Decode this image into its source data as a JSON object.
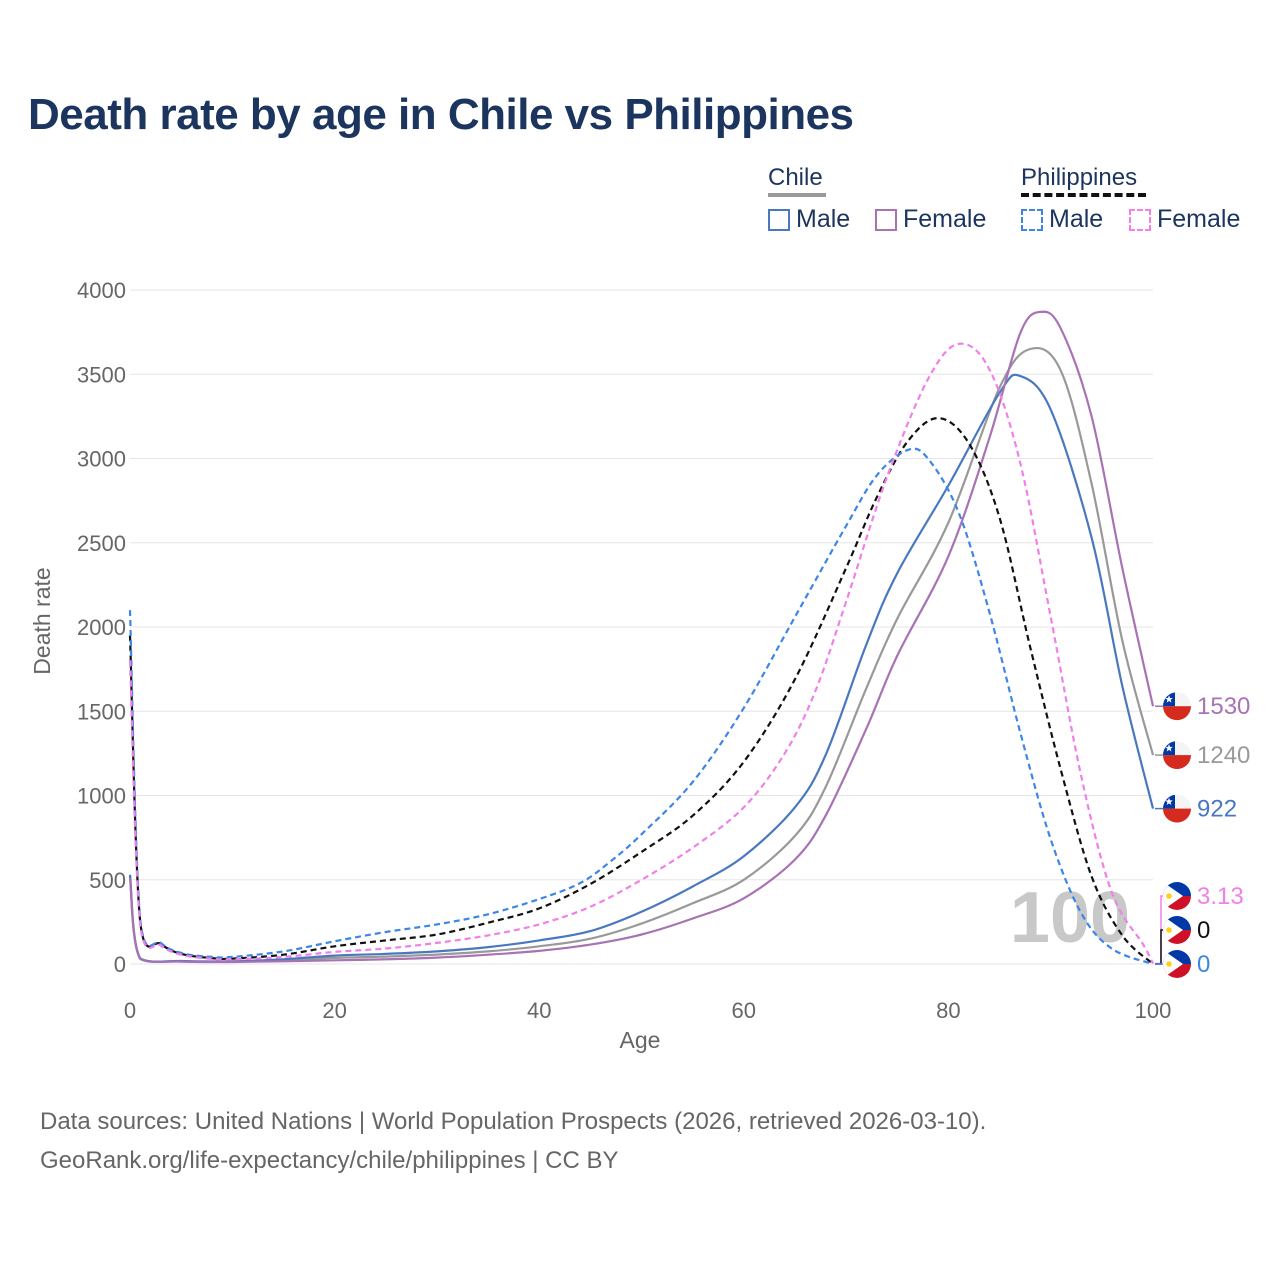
{
  "title": "Death rate by age in Chile vs Philippines",
  "legend": {
    "chile_label": "Chile",
    "philippines_label": "Philippines",
    "male_label": "Male",
    "female_label": "Female"
  },
  "colors": {
    "chile_male": "#4a78c0",
    "chile_female": "#a872b4",
    "chile_total": "#999999",
    "ph_male": "#3d86e8",
    "ph_female": "#f080e8",
    "ph_total": "#111111",
    "title": "#1c355e",
    "grid": "#e5e5e5"
  },
  "chart_data": {
    "type": "line",
    "title": "Death rate by age in Chile vs Philippines",
    "xlabel": "Age",
    "ylabel": "Death rate",
    "xlim": [
      0,
      100
    ],
    "ylim": [
      0,
      4000
    ],
    "x_ticks": [
      0,
      20,
      40,
      60,
      80,
      100
    ],
    "y_ticks": [
      0,
      500,
      1000,
      1500,
      2000,
      2500,
      3000,
      3500,
      4000
    ],
    "watermark": "100",
    "series": [
      {
        "name": "Chile Total",
        "country": "Chile",
        "sex": "Total",
        "color": "#999999",
        "dashed": false,
        "end_label": "1240",
        "end_value": 1240,
        "points": [
          [
            0,
            520
          ],
          [
            1,
            32
          ],
          [
            5,
            16
          ],
          [
            10,
            14
          ],
          [
            15,
            22
          ],
          [
            20,
            36
          ],
          [
            25,
            44
          ],
          [
            30,
            56
          ],
          [
            35,
            75
          ],
          [
            40,
            105
          ],
          [
            45,
            150
          ],
          [
            50,
            240
          ],
          [
            55,
            360
          ],
          [
            60,
            500
          ],
          [
            65,
            760
          ],
          [
            68,
            1050
          ],
          [
            72,
            1640
          ],
          [
            75,
            2050
          ],
          [
            80,
            2620
          ],
          [
            85,
            3420
          ],
          [
            88,
            3650
          ],
          [
            91,
            3520
          ],
          [
            94,
            2850
          ],
          [
            97,
            1920
          ],
          [
            100,
            1240
          ]
        ]
      },
      {
        "name": "Chile Male",
        "country": "Chile",
        "sex": "Male",
        "color": "#4a78c0",
        "dashed": false,
        "end_label": "922",
        "end_value": 922,
        "points": [
          [
            0,
            530
          ],
          [
            1,
            34
          ],
          [
            5,
            18
          ],
          [
            10,
            16
          ],
          [
            15,
            28
          ],
          [
            20,
            50
          ],
          [
            25,
            60
          ],
          [
            30,
            75
          ],
          [
            35,
            100
          ],
          [
            40,
            140
          ],
          [
            45,
            195
          ],
          [
            50,
            310
          ],
          [
            55,
            460
          ],
          [
            60,
            640
          ],
          [
            65,
            930
          ],
          [
            68,
            1240
          ],
          [
            72,
            1900
          ],
          [
            75,
            2320
          ],
          [
            80,
            2840
          ],
          [
            85,
            3390
          ],
          [
            87,
            3490
          ],
          [
            90,
            3290
          ],
          [
            94,
            2530
          ],
          [
            97,
            1650
          ],
          [
            100,
            922
          ]
        ]
      },
      {
        "name": "Chile Female",
        "country": "Chile",
        "sex": "Female",
        "color": "#a872b4",
        "dashed": false,
        "end_label": "1530",
        "end_value": 1530,
        "points": [
          [
            0,
            510
          ],
          [
            1,
            30
          ],
          [
            5,
            14
          ],
          [
            10,
            12
          ],
          [
            15,
            16
          ],
          [
            20,
            22
          ],
          [
            25,
            28
          ],
          [
            30,
            38
          ],
          [
            35,
            55
          ],
          [
            40,
            78
          ],
          [
            45,
            115
          ],
          [
            50,
            175
          ],
          [
            55,
            270
          ],
          [
            60,
            390
          ],
          [
            65,
            620
          ],
          [
            68,
            880
          ],
          [
            72,
            1400
          ],
          [
            75,
            1830
          ],
          [
            80,
            2420
          ],
          [
            84,
            3120
          ],
          [
            87,
            3740
          ],
          [
            89,
            3870
          ],
          [
            91,
            3770
          ],
          [
            94,
            3250
          ],
          [
            97,
            2350
          ],
          [
            100,
            1530
          ]
        ]
      },
      {
        "name": "Philippines Total",
        "country": "Philippines",
        "sex": "Total",
        "color": "#111111",
        "dashed": true,
        "end_label": "0",
        "end_value": 0,
        "points": [
          [
            0,
            1950
          ],
          [
            1,
            250
          ],
          [
            3,
            120
          ],
          [
            5,
            60
          ],
          [
            8,
            35
          ],
          [
            10,
            32
          ],
          [
            15,
            55
          ],
          [
            20,
            105
          ],
          [
            25,
            140
          ],
          [
            30,
            175
          ],
          [
            35,
            245
          ],
          [
            40,
            330
          ],
          [
            45,
            475
          ],
          [
            50,
            665
          ],
          [
            55,
            880
          ],
          [
            60,
            1200
          ],
          [
            65,
            1690
          ],
          [
            70,
            2350
          ],
          [
            73,
            2770
          ],
          [
            76,
            3100
          ],
          [
            79,
            3240
          ],
          [
            82,
            3090
          ],
          [
            85,
            2650
          ],
          [
            88,
            1880
          ],
          [
            91,
            1150
          ],
          [
            94,
            520
          ],
          [
            97,
            170
          ],
          [
            100,
            0
          ]
        ]
      },
      {
        "name": "Philippines Male",
        "country": "Philippines",
        "sex": "Male",
        "color": "#3d86e8",
        "dashed": true,
        "end_label": "0",
        "end_value": 0,
        "points": [
          [
            0,
            2100
          ],
          [
            1,
            265
          ],
          [
            3,
            125
          ],
          [
            5,
            65
          ],
          [
            8,
            42
          ],
          [
            10,
            42
          ],
          [
            15,
            75
          ],
          [
            20,
            135
          ],
          [
            25,
            190
          ],
          [
            30,
            235
          ],
          [
            35,
            295
          ],
          [
            40,
            385
          ],
          [
            44,
            480
          ],
          [
            47,
            610
          ],
          [
            50,
            770
          ],
          [
            55,
            1080
          ],
          [
            60,
            1520
          ],
          [
            65,
            2060
          ],
          [
            70,
            2600
          ],
          [
            73,
            2900
          ],
          [
            76,
            3050
          ],
          [
            78,
            3000
          ],
          [
            81,
            2680
          ],
          [
            84,
            2090
          ],
          [
            87,
            1380
          ],
          [
            90,
            740
          ],
          [
            93,
            300
          ],
          [
            96,
            90
          ],
          [
            100,
            0
          ]
        ]
      },
      {
        "name": "Philippines Female",
        "country": "Philippines",
        "sex": "Female",
        "color": "#f080e8",
        "dashed": true,
        "end_label": "3.13",
        "end_value": 3.13,
        "points": [
          [
            0,
            1800
          ],
          [
            1,
            235
          ],
          [
            3,
            110
          ],
          [
            5,
            55
          ],
          [
            8,
            30
          ],
          [
            10,
            28
          ],
          [
            15,
            42
          ],
          [
            20,
            72
          ],
          [
            25,
            92
          ],
          [
            30,
            125
          ],
          [
            35,
            170
          ],
          [
            40,
            235
          ],
          [
            45,
            340
          ],
          [
            50,
            500
          ],
          [
            55,
            690
          ],
          [
            60,
            930
          ],
          [
            64,
            1250
          ],
          [
            67,
            1620
          ],
          [
            70,
            2150
          ],
          [
            74,
            2890
          ],
          [
            78,
            3470
          ],
          [
            81,
            3680
          ],
          [
            84,
            3530
          ],
          [
            87,
            2980
          ],
          [
            90,
            2060
          ],
          [
            93,
            1110
          ],
          [
            96,
            420
          ],
          [
            99,
            120
          ],
          [
            100,
            3.13
          ]
        ]
      }
    ],
    "end_label_order": [
      "Chile Female",
      "Chile Total",
      "Chile Male",
      "Philippines Female",
      "Philippines Total",
      "Philippines Male"
    ]
  },
  "footer": {
    "source": "Data sources: United Nations | World Population Prospects (2026, retrieved 2026-03-10).",
    "link": "GeoRank.org/life-expectancy/chile/philippines | CC BY"
  }
}
